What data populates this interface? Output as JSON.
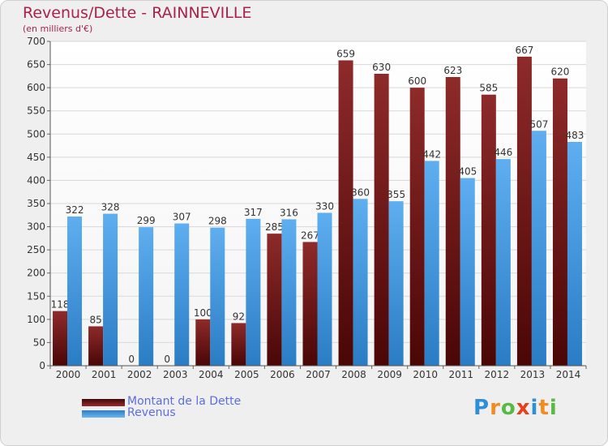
{
  "chart_data": {
    "type": "bar",
    "title": "Revenus/Dette - RAINNEVILLE",
    "subtitle": "(en milliers d'€)",
    "categories": [
      "2000",
      "2001",
      "2002",
      "2003",
      "2004",
      "2005",
      "2006",
      "2007",
      "2008",
      "2009",
      "2010",
      "2011",
      "2012",
      "2013",
      "2014"
    ],
    "series": [
      {
        "name": "Montant de la Dette",
        "color": "#7a1a1a",
        "values": [
          118,
          85,
          0,
          0,
          100,
          92,
          285,
          267,
          659,
          630,
          600,
          623,
          585,
          667,
          620
        ]
      },
      {
        "name": "Revenus",
        "color": "#4a9de0",
        "values": [
          322,
          328,
          299,
          307,
          298,
          317,
          316,
          330,
          360,
          355,
          442,
          405,
          446,
          507,
          483
        ]
      }
    ],
    "data_labels": [
      [
        "118",
        "85",
        "0",
        "0",
        "100",
        "92",
        "285",
        "267",
        "659",
        "630",
        "600",
        "623",
        "585",
        "667",
        "620"
      ],
      [
        "322",
        "328",
        "299",
        "307",
        "298",
        "317",
        "316",
        "330",
        "360",
        "355",
        "442",
        "405",
        "446",
        "507",
        "483"
      ]
    ],
    "ylim": [
      0,
      700
    ],
    "yticks": [
      0,
      50,
      100,
      150,
      200,
      250,
      300,
      350,
      400,
      450,
      500,
      550,
      600,
      650,
      700
    ],
    "grid": true,
    "legend_position": "bottom-left"
  },
  "logo": {
    "text": "Proxiti",
    "colors": [
      "#2e8fd6",
      "#f28c1e",
      "#58b947",
      "#e8401c",
      "#2e8fd6",
      "#f28c1e",
      "#58b947"
    ]
  }
}
